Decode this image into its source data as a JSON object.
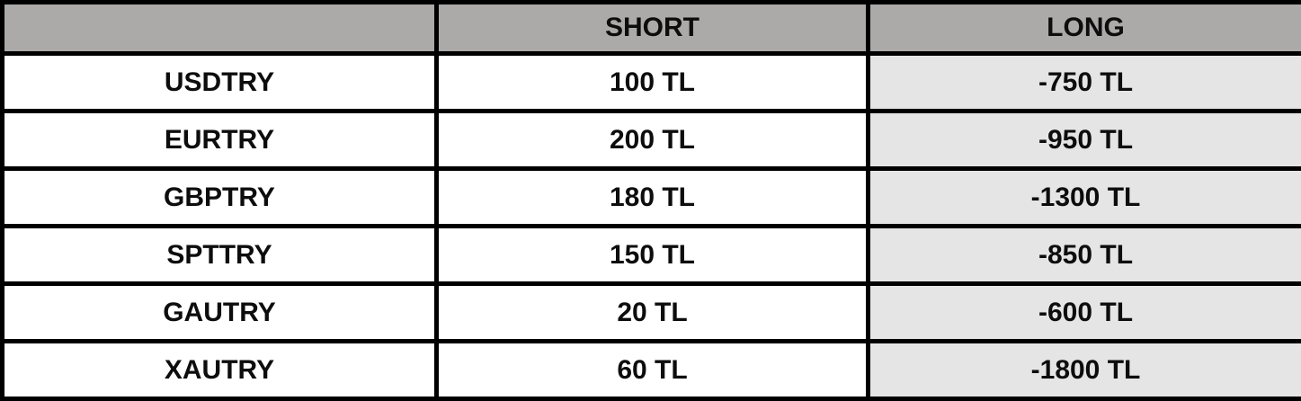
{
  "table": {
    "columns": {
      "instrument": "",
      "short": "SHORT",
      "long": "LONG"
    },
    "rows": [
      {
        "instrument": "USDTRY",
        "short": "100 TL",
        "long": "-750 TL"
      },
      {
        "instrument": "EURTRY",
        "short": "200 TL",
        "long": "-950 TL"
      },
      {
        "instrument": "GBPTRY",
        "short": "180 TL",
        "long": "-1300 TL"
      },
      {
        "instrument": "SPTTRY",
        "short": "150 TL",
        "long": "-850 TL"
      },
      {
        "instrument": "GAUTRY",
        "short": "20 TL",
        "long": "-600 TL"
      },
      {
        "instrument": "XAUTRY",
        "short": "60 TL",
        "long": "-1800 TL"
      }
    ]
  },
  "colors": {
    "header_bg": "#aca9a9",
    "long_cell_bg": "#e6e5e5",
    "negative_value_text": "#fb2112",
    "border": "#000000",
    "text": "#0d0d0d"
  },
  "chart_data": {
    "type": "table",
    "title": "",
    "columns": [
      "",
      "SHORT",
      "LONG"
    ],
    "rows": [
      [
        "USDTRY",
        "100 TL",
        "-750 TL"
      ],
      [
        "EURTRY",
        "200 TL",
        "-950 TL"
      ],
      [
        "GBPTRY",
        "180 TL",
        "-1300 TL"
      ],
      [
        "SPTTRY",
        "150 TL",
        "-850 TL"
      ],
      [
        "GAUTRY",
        "20 TL",
        "-600 TL"
      ],
      [
        "XAUTRY",
        "60 TL",
        "-1800 TL"
      ]
    ],
    "short_values_tl": [
      100,
      200,
      180,
      150,
      20,
      60
    ],
    "long_values_tl": [
      -750,
      -950,
      -1300,
      -850,
      -600,
      -1800
    ],
    "notes": "LONG column values rendered in red on light-gray cells; header row gray; thick black grid borders"
  }
}
